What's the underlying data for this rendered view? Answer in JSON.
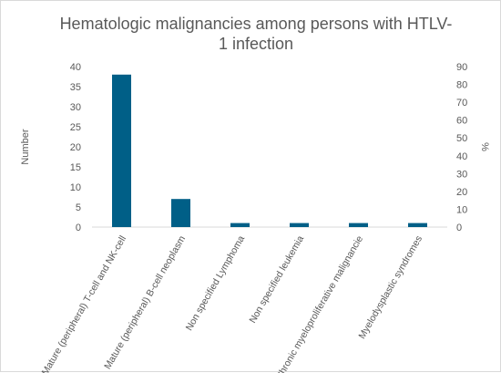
{
  "chart_data": {
    "type": "bar",
    "title": "Hematologic malignancies among persons with HTLV-1 infection",
    "ylabel": "Number",
    "y2label": "%",
    "ylim": [
      0,
      40
    ],
    "y_ticks": [
      0,
      5,
      10,
      15,
      20,
      25,
      30,
      35,
      40
    ],
    "y2lim": [
      0,
      90
    ],
    "y2_ticks": [
      0,
      10,
      20,
      30,
      40,
      50,
      60,
      70,
      80,
      90
    ],
    "grid": false,
    "legend": "none",
    "bar_color": "#005f87",
    "categories": [
      "Mature (peripheral) T-cell and NK-cell",
      "Mature (peripheral) B-cell neoplasm",
      "Non specified Lymphoma",
      "Non specified leukemia",
      "Chronic myeloproliferative malignancie",
      "Myelodysplastic syndromes"
    ],
    "values": [
      38,
      7,
      1,
      1,
      1,
      1
    ]
  }
}
